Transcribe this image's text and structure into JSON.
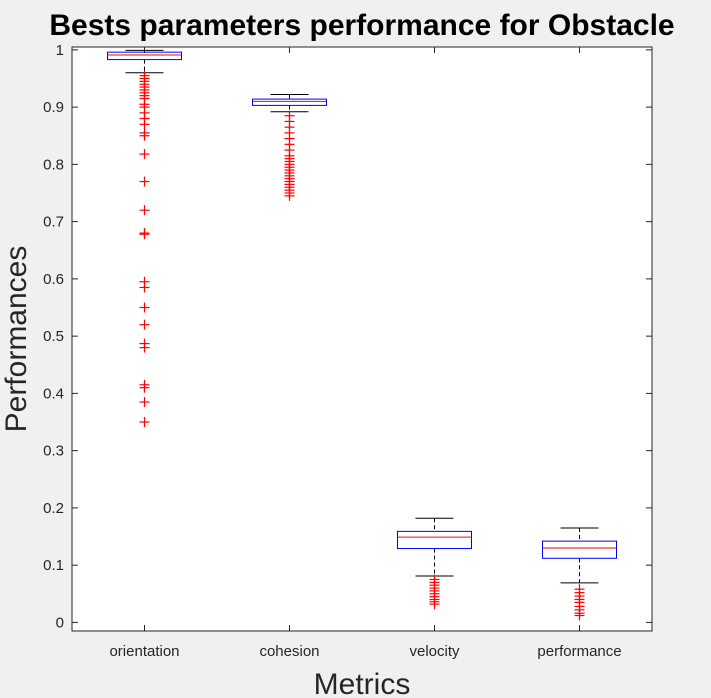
{
  "chart_data": {
    "type": "box",
    "title": "Bests parameters performance for Obstacle",
    "xlabel": "Metrics",
    "ylabel": "Performances",
    "ylim": [
      -0.015,
      1.005
    ],
    "yticks": [
      0,
      0.1,
      0.2,
      0.3,
      0.4,
      0.5,
      0.6,
      0.7,
      0.8,
      0.9,
      1
    ],
    "ytick_labels": [
      "0",
      "0.1",
      "0.2",
      "0.3",
      "0.4",
      "0.5",
      "0.6",
      "0.7",
      "0.8",
      "0.9",
      "1"
    ],
    "grid": false,
    "categories": [
      "orientation",
      "cohesion",
      "velocity",
      "performance"
    ],
    "boxes": [
      {
        "category": "orientation",
        "whisker_low": 0.96,
        "q1": 0.983,
        "median": 0.991,
        "q3": 0.996,
        "whisker_high": 0.999,
        "outliers": [
          0.955,
          0.95,
          0.945,
          0.94,
          0.935,
          0.93,
          0.925,
          0.92,
          0.915,
          0.905,
          0.9,
          0.89,
          0.88,
          0.87,
          0.855,
          0.85,
          0.818,
          0.77,
          0.72,
          0.68,
          0.678,
          0.595,
          0.585,
          0.55,
          0.52,
          0.487,
          0.48,
          0.415,
          0.41,
          0.385,
          0.35
        ]
      },
      {
        "category": "cohesion",
        "whisker_low": 0.892,
        "q1": 0.903,
        "median": 0.91,
        "q3": 0.914,
        "whisker_high": 0.922,
        "outliers": [
          0.885,
          0.875,
          0.865,
          0.855,
          0.845,
          0.835,
          0.825,
          0.815,
          0.81,
          0.805,
          0.8,
          0.795,
          0.79,
          0.785,
          0.78,
          0.775,
          0.77,
          0.765,
          0.76,
          0.755,
          0.75,
          0.745
        ]
      },
      {
        "category": "velocity",
        "whisker_low": 0.081,
        "q1": 0.129,
        "median": 0.149,
        "q3": 0.159,
        "whisker_high": 0.182,
        "outliers": [
          0.075,
          0.07,
          0.065,
          0.06,
          0.055,
          0.05,
          0.045,
          0.04,
          0.036,
          0.032
        ]
      },
      {
        "category": "performance",
        "whisker_low": 0.069,
        "q1": 0.112,
        "median": 0.13,
        "q3": 0.142,
        "whisker_high": 0.165,
        "outliers": [
          0.058,
          0.052,
          0.046,
          0.04,
          0.035,
          0.028,
          0.022,
          0.016,
          0.012
        ]
      }
    ],
    "colors": {
      "box": "#0000ff",
      "median": "#ff0000",
      "whisker": "#000000",
      "outlier": "#ff0000",
      "axes_bg": "#ffffff",
      "figure_bg": "#f0f0f0"
    }
  }
}
